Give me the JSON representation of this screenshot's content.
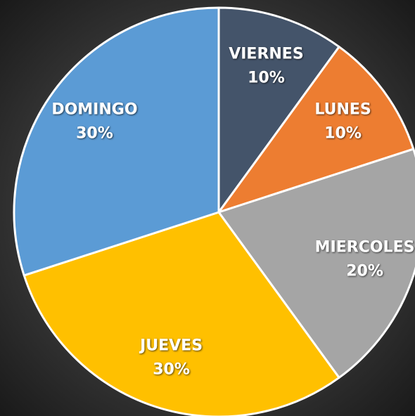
{
  "chart_data": {
    "type": "pie",
    "categories": [
      "VIERNES",
      "LUNES",
      "MIERCOLES",
      "JUEVES",
      "DOMINGO"
    ],
    "values": [
      10,
      10,
      20,
      30,
      30
    ],
    "value_labels": [
      "10%",
      "10%",
      "20%",
      "30%",
      "30%"
    ],
    "colors": [
      "#44546a",
      "#ed7d31",
      "#a5a5a5",
      "#ffc000",
      "#5b9bd5"
    ]
  }
}
